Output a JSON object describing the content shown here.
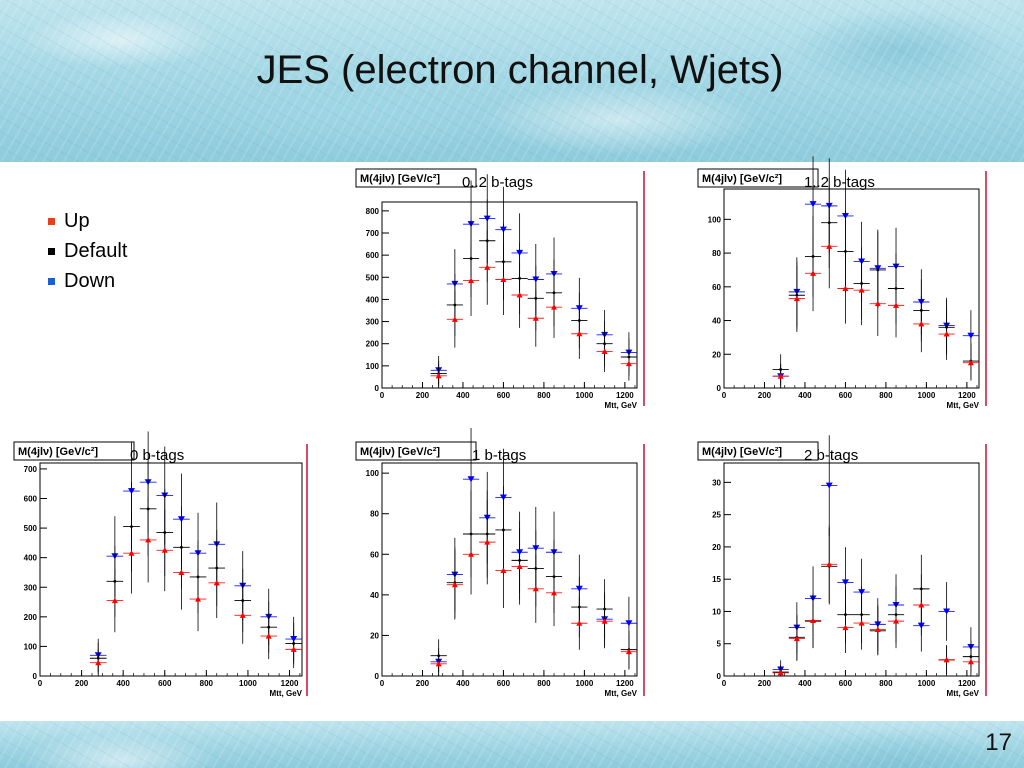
{
  "slide": {
    "title": "JES (electron channel, Wjets)",
    "page_number": "17"
  },
  "legend": [
    {
      "label": "Up",
      "color": "#e8401c"
    },
    {
      "label": "Default",
      "color": "#000000"
    },
    {
      "label": "Down",
      "color": "#1a5ed8"
    }
  ],
  "colors": {
    "up": "#ff0000",
    "default": "#000000",
    "down": "#0000ff"
  },
  "chart_data": [
    {
      "type": "scatter",
      "panel_label": "0..2 b-tags",
      "ylabel": "M(4jlν) [GeV/c²]",
      "xlabel": "Mtt, GeV",
      "xlim": [
        0,
        1260
      ],
      "ylim": [
        0,
        840
      ],
      "xticks": [
        0,
        200,
        400,
        600,
        800,
        1000,
        1200
      ],
      "yticks": [
        0,
        100,
        200,
        300,
        400,
        500,
        600,
        700,
        800
      ],
      "x": [
        280,
        360,
        440,
        520,
        600,
        680,
        760,
        850,
        975,
        1100,
        1220
      ],
      "series": [
        {
          "name": "Down",
          "values": [
            80,
            470,
            740,
            765,
            715,
            610,
            490,
            515,
            360,
            240,
            160
          ]
        },
        {
          "name": "Default",
          "values": [
            65,
            375,
            585,
            665,
            570,
            495,
            405,
            430,
            305,
            200,
            140
          ]
        },
        {
          "name": "Up",
          "values": [
            55,
            310,
            485,
            545,
            490,
            420,
            315,
            365,
            245,
            165,
            110
          ]
        }
      ]
    },
    {
      "type": "scatter",
      "panel_label": "1..2 b-tags",
      "ylabel": "M(4jlν) [GeV/c²]",
      "xlabel": "Mtt, GeV",
      "xlim": [
        0,
        1260
      ],
      "ylim": [
        0,
        118
      ],
      "xticks": [
        0,
        200,
        400,
        600,
        800,
        1000,
        1200
      ],
      "yticks": [
        0,
        20,
        40,
        60,
        80,
        100
      ],
      "x": [
        280,
        360,
        440,
        520,
        600,
        680,
        760,
        850,
        975,
        1100,
        1220
      ],
      "series": [
        {
          "name": "Down",
          "values": [
            7,
            57,
            109,
            108,
            102,
            75,
            71,
            72,
            51,
            37,
            31
          ]
        },
        {
          "name": "Default",
          "values": [
            11,
            55,
            78,
            98,
            81,
            62,
            70,
            59,
            46,
            36,
            16
          ]
        },
        {
          "name": "Up",
          "values": [
            7,
            53,
            68,
            84,
            59,
            58,
            50,
            49,
            38,
            32,
            15
          ]
        }
      ]
    },
    {
      "type": "scatter",
      "panel_label": "0 b-tags",
      "ylabel": "M(4jlν) [GeV/c²]",
      "xlabel": "Mtt, GeV",
      "xlim": [
        0,
        1260
      ],
      "ylim": [
        0,
        720
      ],
      "xticks": [
        0,
        200,
        400,
        600,
        800,
        1000,
        1200
      ],
      "yticks": [
        0,
        100,
        200,
        300,
        400,
        500,
        600,
        700
      ],
      "x": [
        280,
        360,
        440,
        520,
        600,
        680,
        760,
        850,
        975,
        1100,
        1220
      ],
      "series": [
        {
          "name": "Down",
          "values": [
            70,
            405,
            625,
            655,
            610,
            530,
            415,
            445,
            305,
            200,
            125
          ]
        },
        {
          "name": "Default",
          "values": [
            60,
            320,
            505,
            565,
            485,
            435,
            335,
            365,
            255,
            165,
            110
          ]
        },
        {
          "name": "Up",
          "values": [
            45,
            255,
            415,
            460,
            425,
            350,
            260,
            315,
            205,
            135,
            90
          ]
        }
      ]
    },
    {
      "type": "scatter",
      "panel_label": "1 b-tags",
      "ylabel": "M(4jlν) [GeV/c²]",
      "xlabel": "Mtt, GeV",
      "xlim": [
        0,
        1260
      ],
      "ylim": [
        0,
        105
      ],
      "xticks": [
        0,
        200,
        400,
        600,
        800,
        1000,
        1200
      ],
      "yticks": [
        0,
        20,
        40,
        60,
        80,
        100
      ],
      "x": [
        280,
        360,
        440,
        520,
        600,
        680,
        760,
        850,
        975,
        1100,
        1220
      ],
      "series": [
        {
          "name": "Down",
          "values": [
            7,
            50,
            97,
            78,
            88,
            61,
            63,
            61,
            43,
            28,
            26
          ]
        },
        {
          "name": "Default",
          "values": [
            10,
            46,
            70,
            70,
            72,
            57,
            53,
            49,
            34,
            33,
            13
          ]
        },
        {
          "name": "Up",
          "values": [
            6,
            45,
            60,
            66,
            52,
            54,
            43,
            41,
            26,
            27,
            12
          ]
        }
      ]
    },
    {
      "type": "scatter",
      "panel_label": "2 b-tags",
      "ylabel": "M(4jlν) [GeV/c²]",
      "xlabel": "Mtt, GeV",
      "xlim": [
        0,
        1260
      ],
      "ylim": [
        0,
        33
      ],
      "xticks": [
        0,
        200,
        400,
        600,
        800,
        1000,
        1200
      ],
      "yticks": [
        0,
        5,
        10,
        15,
        20,
        25,
        30
      ],
      "x": [
        280,
        360,
        440,
        520,
        600,
        680,
        760,
        850,
        975,
        1100,
        1220
      ],
      "series": [
        {
          "name": "Down",
          "values": [
            1,
            7.5,
            12,
            29.5,
            14.5,
            13,
            8,
            11,
            7.8,
            10,
            4.5
          ]
        },
        {
          "name": "Default",
          "values": [
            0.6,
            6,
            8.5,
            17,
            9.5,
            9.5,
            7,
            9.5,
            13.5,
            2.5,
            3
          ]
        },
        {
          "name": "Up",
          "values": [
            0.5,
            5.8,
            8.6,
            17.3,
            7.5,
            8.2,
            7.2,
            8.5,
            11,
            2.5,
            2.2
          ]
        }
      ]
    }
  ]
}
